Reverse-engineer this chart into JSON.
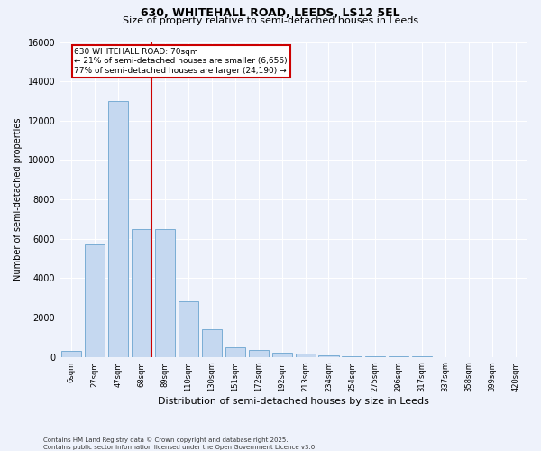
{
  "title_line1": "630, WHITEHALL ROAD, LEEDS, LS12 5EL",
  "title_line2": "Size of property relative to semi-detached houses in Leeds",
  "xlabel": "Distribution of semi-detached houses by size in Leeds",
  "ylabel": "Number of semi-detached properties",
  "categories": [
    "6sqm",
    "27sqm",
    "47sqm",
    "68sqm",
    "89sqm",
    "110sqm",
    "130sqm",
    "151sqm",
    "172sqm",
    "192sqm",
    "213sqm",
    "234sqm",
    "254sqm",
    "275sqm",
    "296sqm",
    "317sqm",
    "337sqm",
    "358sqm",
    "399sqm",
    "420sqm"
  ],
  "values": [
    300,
    5700,
    13000,
    6500,
    6500,
    2800,
    1400,
    500,
    350,
    200,
    150,
    80,
    30,
    20,
    10,
    5,
    0,
    0,
    0,
    0
  ],
  "bar_color": "#c5d8f0",
  "bar_edge_color": "#7aadd4",
  "red_line_index": 3,
  "annotation_text_line1": "630 WHITEHALL ROAD: 70sqm",
  "annotation_text_line2": "← 21% of semi-detached houses are smaller (6,656)",
  "annotation_text_line3": "77% of semi-detached houses are larger (24,190) →",
  "ylim": [
    0,
    16000
  ],
  "yticks": [
    0,
    2000,
    4000,
    6000,
    8000,
    10000,
    12000,
    14000,
    16000
  ],
  "footnote1": "Contains HM Land Registry data © Crown copyright and database right 2025.",
  "footnote2": "Contains public sector information licensed under the Open Government Licence v3.0.",
  "background_color": "#eef2fb",
  "grid_color": "#ffffff",
  "annotation_box_facecolor": "#ffffff",
  "annotation_box_edgecolor": "#cc0000",
  "red_line_color": "#cc0000",
  "title1_fontsize": 9,
  "title2_fontsize": 8,
  "xlabel_fontsize": 8,
  "ylabel_fontsize": 7,
  "xtick_fontsize": 6,
  "ytick_fontsize": 7,
  "annot_fontsize": 6.5,
  "footnote_fontsize": 5
}
